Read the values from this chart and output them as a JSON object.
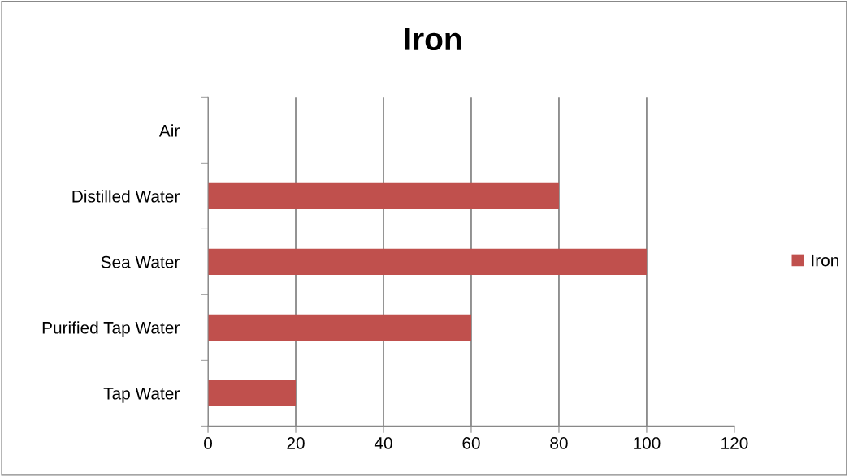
{
  "chart_data": {
    "type": "bar",
    "orientation": "horizontal",
    "title": "Iron",
    "categories": [
      "Air",
      "Distilled Water",
      "Sea Water",
      "Purified Tap Water",
      "Tap Water"
    ],
    "series": [
      {
        "name": "Iron",
        "color": "#c0504d",
        "values": [
          0,
          80,
          100,
          60,
          20
        ]
      }
    ],
    "xlim": [
      0,
      120
    ],
    "xticks": [
      0,
      20,
      40,
      60,
      80,
      100,
      120
    ],
    "grid": "x",
    "legend": "right"
  }
}
